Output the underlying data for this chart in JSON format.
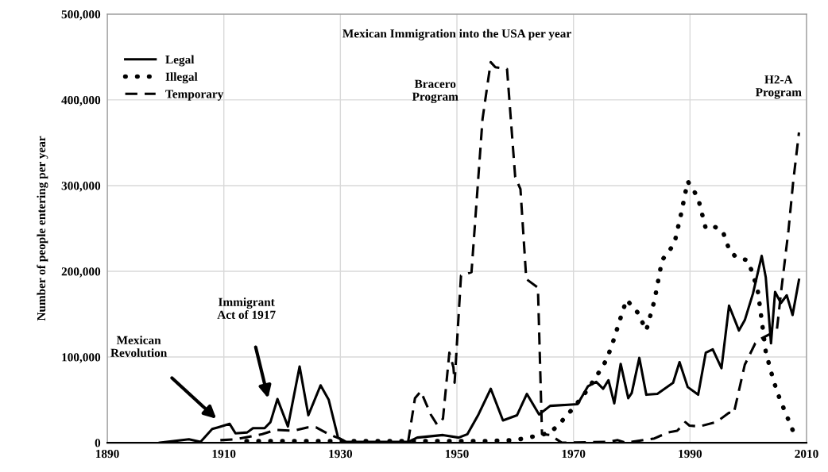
{
  "chart_data": {
    "type": "line",
    "title": "Mexican Immigration into the USA per year",
    "ylabel": "Number of people entering per year",
    "xlim": [
      1890,
      2010
    ],
    "xticks": [
      1890,
      1910,
      1930,
      1950,
      1970,
      1990,
      2010
    ],
    "ylim": [
      0,
      500000
    ],
    "yticks": [
      0,
      {
        "value": 100000,
        "label": "100,000"
      },
      {
        "value": 200000,
        "label": "200,000"
      },
      {
        "value": 300000,
        "label": "300,000"
      },
      {
        "value": 400000,
        "label": "400,000"
      },
      {
        "value": 500000,
        "label": "500,000"
      }
    ],
    "grid": true,
    "legend": "top left",
    "series": [
      {
        "name": "Legal",
        "color": "#000000",
        "line_style": "solid",
        "x": [
          1899,
          1904,
          1906,
          1908,
          1909,
          1911,
          1912,
          1914,
          1915,
          1917,
          1918,
          1919.2,
          1921,
          1923,
          1924.5,
          1926.6,
          1928,
          1929.6,
          1931,
          1941.6,
          1943.2,
          1947.6,
          1950.3,
          1951.8,
          1953.7,
          1955.8,
          1957.9,
          1960.3,
          1962,
          1964.1,
          1966,
          1970.7,
          1972.5,
          1973.9,
          1975.1,
          1976,
          1977,
          1978.1,
          1979.4,
          1980,
          1981.3,
          1982.5,
          1984.4,
          1987.1,
          1988.2,
          1989.6,
          1991.4,
          1992.7,
          1993.9,
          1995.4,
          1996.7,
          1998.4,
          1999.4,
          2000.8,
          2002.3,
          2003,
          2003.9,
          2004.6,
          2005.6,
          2006.6,
          2007.6,
          2008.7
        ],
        "values": [
          0,
          4000,
          1000,
          16000,
          18000,
          22000,
          11000,
          12000,
          17000,
          17000,
          24000,
          51000,
          19000,
          89000,
          32000,
          67000,
          50000,
          6000,
          1000,
          1000,
          6000,
          9000,
          6000,
          10000,
          33000,
          63000,
          26000,
          32000,
          57000,
          33000,
          43000,
          45000,
          66000,
          71000,
          63000,
          73000,
          46000,
          92000,
          52000,
          58000,
          99000,
          56000,
          57000,
          70000,
          94000,
          65000,
          56000,
          105000,
          109000,
          87000,
          160000,
          131000,
          143000,
          174000,
          218000,
          193000,
          116000,
          176000,
          163000,
          172000,
          149000,
          190000
        ]
      },
      {
        "name": "Illegal",
        "color": "#000000",
        "line_style": "dotted",
        "x": [
          1912,
          1930,
          1945,
          1955,
          1960,
          1964.4,
          1966,
          1967.5,
          1968.7,
          1969.8,
          1971.9,
          1973.9,
          1975.7,
          1976.9,
          1978,
          1979.1,
          1981,
          1982.5,
          1983.9,
          1985.2,
          1987.3,
          1988.5,
          1989.6,
          1990.5,
          1991.4,
          1992.7,
          1994.2,
          1995.6,
          1996.8,
          1998,
          1999.8,
          2000.5,
          2001.6,
          2002.3,
          2003,
          2003.9,
          2004.9,
          2006.2,
          2007.6
        ],
        "values": [
          2000,
          2000,
          2000,
          2000,
          3000,
          9000,
          12000,
          21000,
          31000,
          39000,
          57000,
          77000,
          97000,
          120000,
          144000,
          167000,
          152000,
          131000,
          166000,
          213000,
          232000,
          268000,
          305000,
          296000,
          285000,
          250000,
          252000,
          247000,
          224000,
          216000,
          213000,
          202000,
          179000,
          143000,
          106000,
          83000,
          60000,
          38000,
          15000
        ]
      },
      {
        "name": "Temporary",
        "color": "#000000",
        "line_style": "dashed",
        "x": [
          1909.4,
          1912,
          1916.6,
          1918.9,
          1922,
          1924.4,
          1925.8,
          1928,
          1929.8,
          1931,
          1941.6,
          1942.8,
          1943.8,
          1945.5,
          1946.6,
          1947.6,
          1948.7,
          1949.4,
          1949.6,
          1950.7,
          1952.5,
          1954.4,
          1955.8,
          1956.6,
          1958.6,
          1960,
          1960.9,
          1961.9,
          1963.9,
          1964.6,
          1966,
          1968,
          1976,
          1977.6,
          1979,
          1983.9,
          1986.2,
          1987.8,
          1989.2,
          1989.9,
          1991.6,
          1994.4,
          1995.3,
          1996.7,
          1997.5,
          1999.4,
          2001.2,
          2002.1,
          2004.9,
          2005.7,
          2006.9,
          2007.7,
          2008.7
        ],
        "values": [
          3000,
          4000,
          10000,
          15000,
          14000,
          18000,
          18000,
          10000,
          5000,
          0,
          0,
          52000,
          60000,
          33000,
          21000,
          28000,
          105000,
          88000,
          70000,
          195000,
          199000,
          378000,
          444000,
          438000,
          436000,
          310000,
          296000,
          191000,
          181000,
          10000,
          9000,
          0,
          1000,
          3000,
          0,
          5000,
          12000,
          14000,
          24000,
          20000,
          19000,
          24000,
          28000,
          35000,
          34000,
          91000,
          116000,
          121000,
          131000,
          180000,
          248000,
          304000,
          362000
        ]
      }
    ],
    "annotations": [
      "Mexican\nRevolution",
      "Immigrant\nAct of 1917",
      "Bracero\nProgram",
      "H2-A\nProgram"
    ]
  }
}
